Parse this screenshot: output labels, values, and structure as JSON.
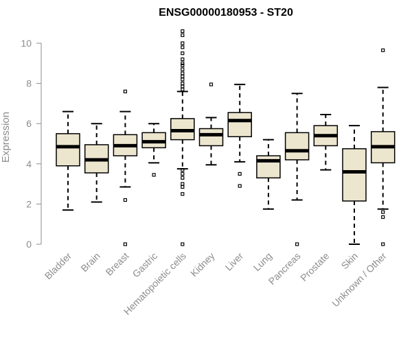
{
  "chart_data": {
    "type": "box",
    "title": "ENSG00000180953 - ST20",
    "xlabel": "",
    "ylabel": "Expression",
    "ylim": [
      0,
      10.7
    ],
    "yticks": [
      0,
      2,
      4,
      6,
      8,
      10
    ],
    "ytick_labels": [
      "0",
      "2",
      "4",
      "6",
      "8",
      "10"
    ],
    "grid": false,
    "legend": "none",
    "colors": {
      "box_fill": "#ede6cf",
      "box_stroke": "#000000",
      "median": "#000000"
    },
    "categories": [
      "Bladder",
      "Brain",
      "Breast",
      "Gastric",
      "Hematopoietic cells",
      "Kidney",
      "Liver",
      "Lung",
      "Pancreas",
      "Prostate",
      "Skin",
      "Unknown / Other"
    ],
    "boxes": [
      {
        "whisker_low": 1.7,
        "q1": 3.9,
        "median": 4.85,
        "q3": 5.5,
        "whisker_high": 6.6,
        "outliers": []
      },
      {
        "whisker_low": 2.1,
        "q1": 3.55,
        "median": 4.2,
        "q3": 4.95,
        "whisker_high": 6.0,
        "outliers": []
      },
      {
        "whisker_low": 2.85,
        "q1": 4.4,
        "median": 4.9,
        "q3": 5.45,
        "whisker_high": 6.6,
        "outliers": [
          7.6,
          2.2,
          0.0
        ]
      },
      {
        "whisker_low": 4.05,
        "q1": 4.8,
        "median": 5.1,
        "q3": 5.55,
        "whisker_high": 6.0,
        "outliers": [
          3.45
        ]
      },
      {
        "whisker_low": 3.75,
        "q1": 5.2,
        "median": 5.65,
        "q3": 6.25,
        "whisker_high": 7.6,
        "outliers": [
          10.6,
          10.4,
          10.0,
          9.8,
          9.5,
          9.2,
          9.0,
          8.9,
          8.7,
          8.5,
          8.35,
          8.2,
          8.0,
          7.85,
          7.7,
          3.7,
          3.5,
          3.3,
          3.0,
          2.85,
          2.5,
          0.0
        ]
      },
      {
        "whisker_low": 3.95,
        "q1": 4.9,
        "median": 5.45,
        "q3": 5.75,
        "whisker_high": 6.3,
        "outliers": [
          7.95
        ]
      },
      {
        "whisker_low": 4.1,
        "q1": 5.35,
        "median": 6.15,
        "q3": 6.55,
        "whisker_high": 7.95,
        "outliers": [
          3.5,
          2.9
        ]
      },
      {
        "whisker_low": 1.75,
        "q1": 3.3,
        "median": 4.15,
        "q3": 4.4,
        "whisker_high": 5.2,
        "outliers": []
      },
      {
        "whisker_low": 2.2,
        "q1": 4.2,
        "median": 4.65,
        "q3": 5.55,
        "whisker_high": 7.5,
        "outliers": [
          0.0
        ]
      },
      {
        "whisker_low": 3.7,
        "q1": 4.9,
        "median": 5.4,
        "q3": 5.9,
        "whisker_high": 6.45,
        "outliers": []
      },
      {
        "whisker_low": 0.0,
        "q1": 2.15,
        "median": 3.6,
        "q3": 4.75,
        "whisker_high": 5.9,
        "outliers": []
      },
      {
        "whisker_low": 1.75,
        "q1": 4.05,
        "median": 4.85,
        "q3": 5.6,
        "whisker_high": 7.8,
        "outliers": [
          9.65,
          1.6,
          1.35,
          0.0
        ]
      }
    ]
  }
}
